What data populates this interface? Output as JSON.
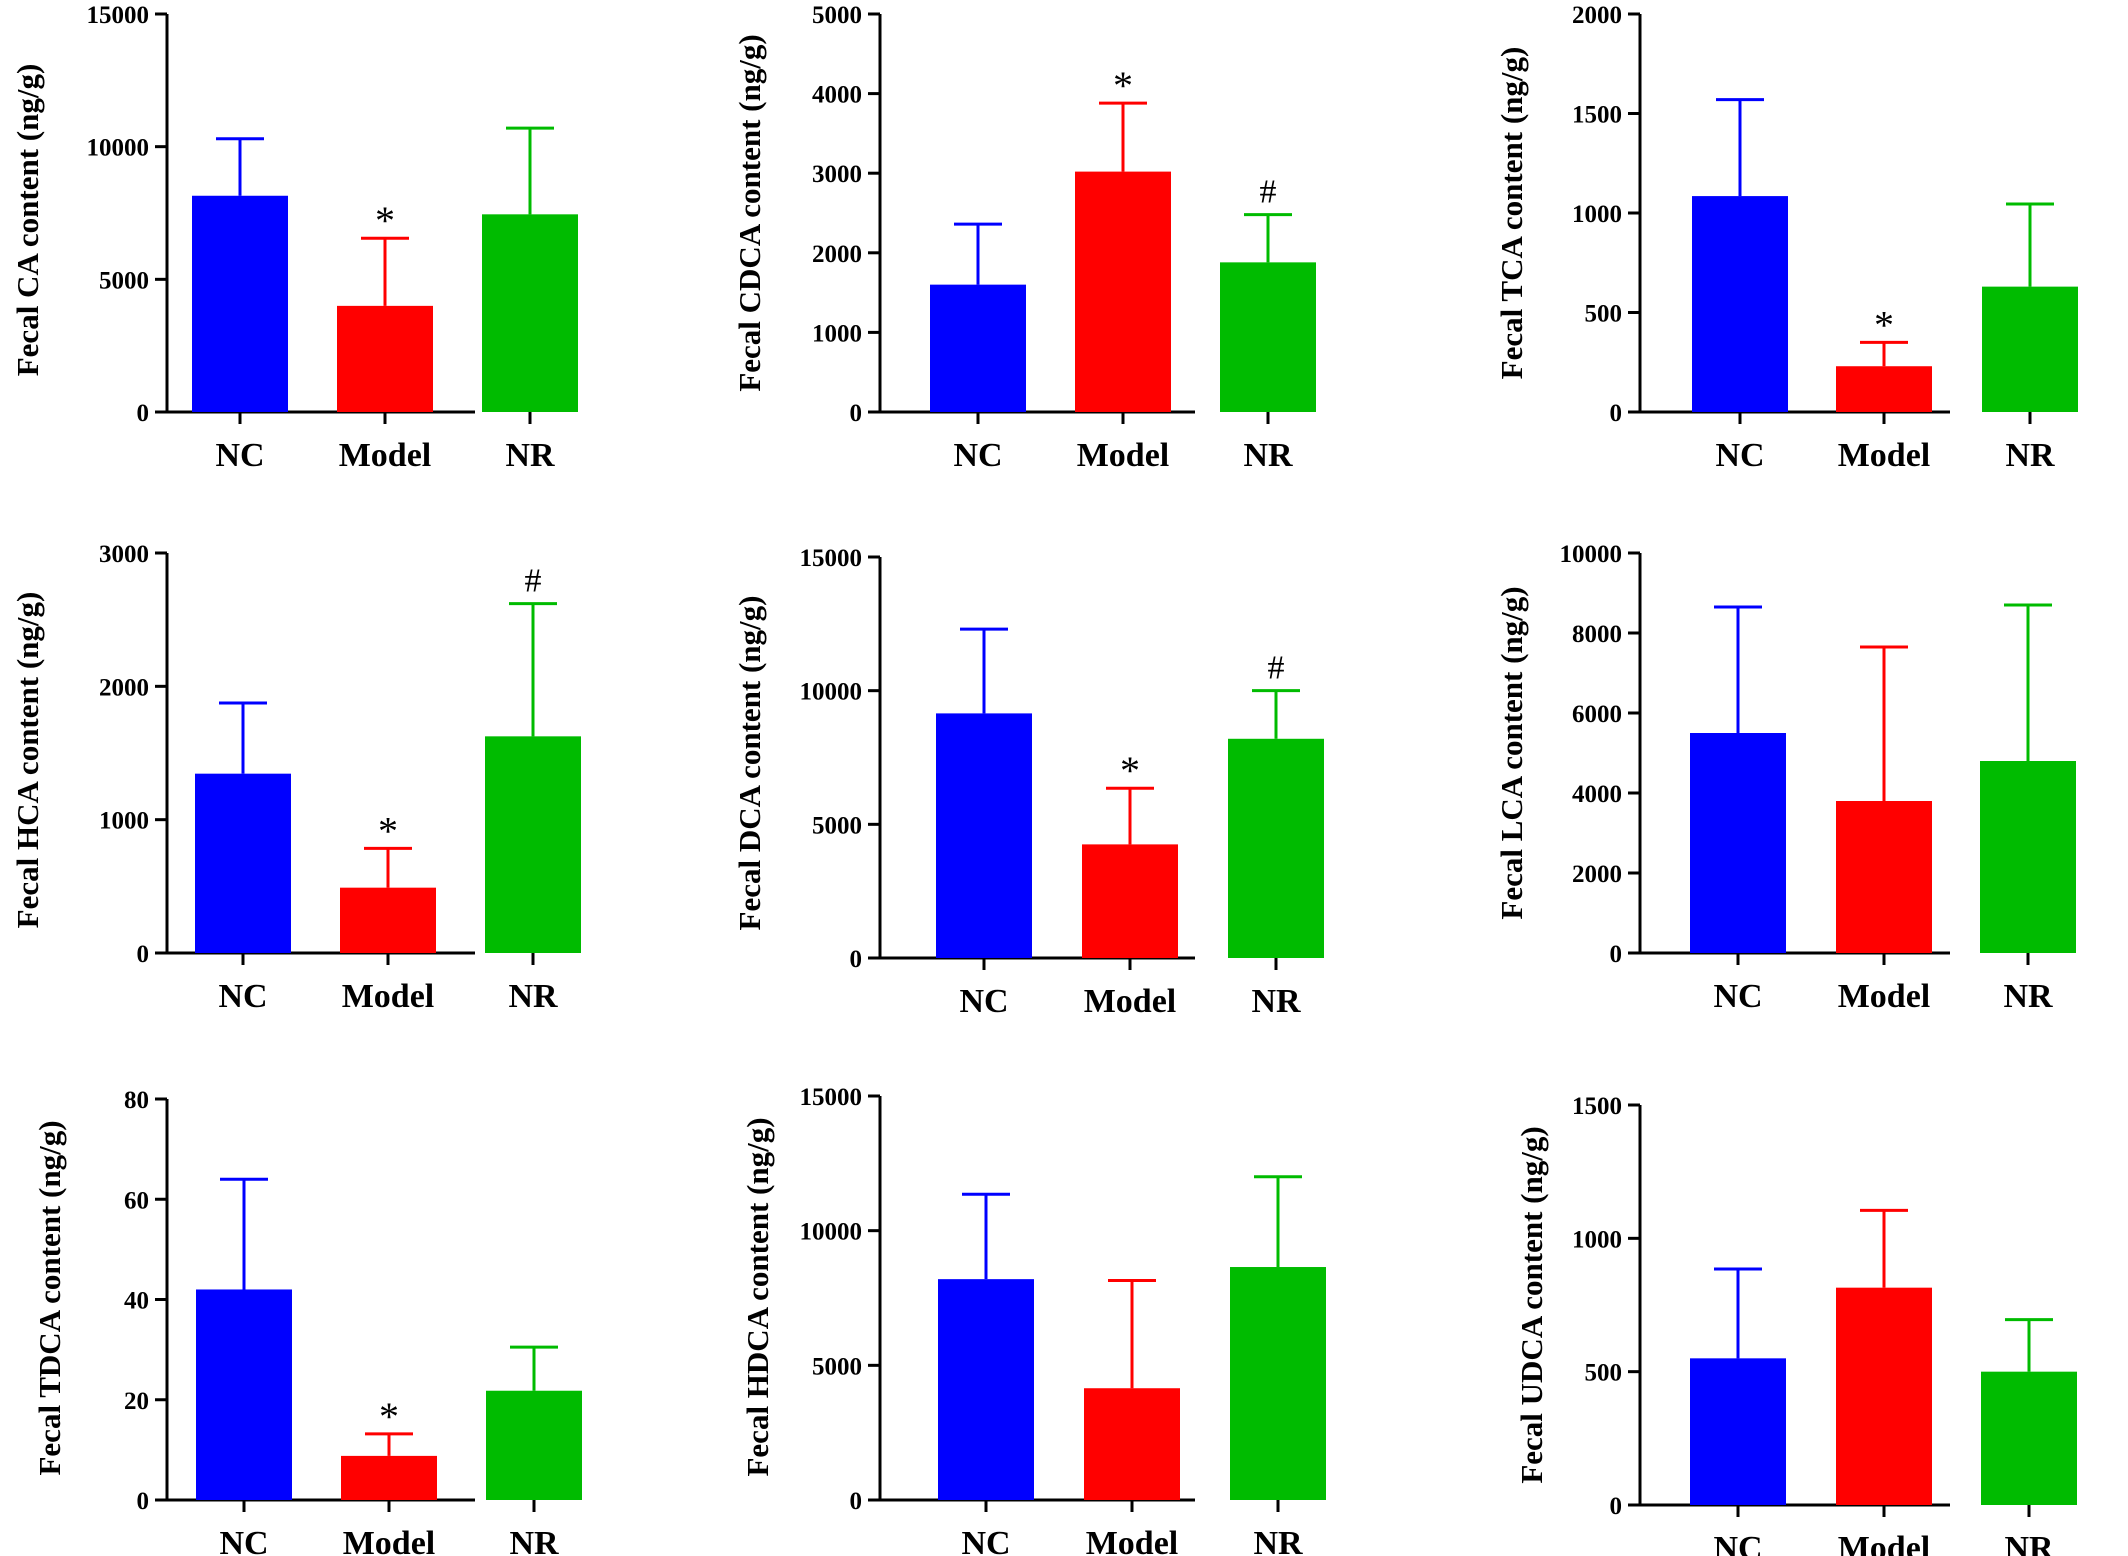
{
  "colors": {
    "NC": "#0000ff",
    "Model": "#ff0000",
    "NR": "#00bb00",
    "axis": "#000000"
  },
  "chart_data": [
    {
      "type": "bar",
      "ylabel": "Fecal CA content (ng/g)",
      "categories": [
        "NC",
        "Model",
        "NR"
      ],
      "values": [
        8150,
        4000,
        7450
      ],
      "errors": [
        2150,
        2550,
        3250
      ],
      "ylim": [
        0,
        15000
      ],
      "yticks": [
        0,
        5000,
        10000,
        15000
      ],
      "tick_labels": [
        "0",
        "5000",
        "10000",
        "15000"
      ],
      "significance": [
        "",
        "*",
        ""
      ]
    },
    {
      "type": "bar",
      "ylabel": "Fecal CDCA content (ng/g)",
      "categories": [
        "NC",
        "Model",
        "NR"
      ],
      "values": [
        1600,
        3020,
        1880
      ],
      "errors": [
        760,
        860,
        600
      ],
      "ylim": [
        0,
        5000
      ],
      "yticks": [
        0,
        1000,
        2000,
        3000,
        4000,
        5000
      ],
      "tick_labels": [
        "0",
        "1000",
        "2000",
        "3000",
        "4000",
        "5000"
      ],
      "significance": [
        "",
        "*",
        "#"
      ]
    },
    {
      "type": "bar",
      "ylabel": "Fecal TCA content (ng/g)",
      "categories": [
        "NC",
        "Model",
        "NR"
      ],
      "values": [
        1085,
        230,
        630
      ],
      "errors": [
        485,
        120,
        415
      ],
      "ylim": [
        0,
        2000
      ],
      "yticks": [
        0,
        500,
        1000,
        1500,
        2000
      ],
      "tick_labels": [
        "0",
        "500",
        "1000",
        "1500",
        "2000"
      ],
      "significance": [
        "",
        "*",
        ""
      ]
    },
    {
      "type": "bar",
      "ylabel": "Fecal HCA content (ng/g)",
      "categories": [
        "NC",
        "Model",
        "NR"
      ],
      "values": [
        1345,
        490,
        1625
      ],
      "errors": [
        530,
        295,
        995
      ],
      "ylim": [
        0,
        3000
      ],
      "yticks": [
        0,
        1000,
        2000,
        3000
      ],
      "tick_labels": [
        "0",
        "1000",
        "2000",
        "3000"
      ],
      "significance": [
        "",
        "*",
        "#"
      ]
    },
    {
      "type": "bar",
      "ylabel": "Fecal DCA content (ng/g)",
      "categories": [
        "NC",
        "Model",
        "NR"
      ],
      "values": [
        9150,
        4250,
        8200
      ],
      "errors": [
        3150,
        2100,
        1800
      ],
      "ylim": [
        0,
        15000
      ],
      "yticks": [
        0,
        5000,
        10000,
        15000
      ],
      "tick_labels": [
        "0",
        "5000",
        "10000",
        "15000"
      ],
      "significance": [
        "",
        "*",
        "#"
      ]
    },
    {
      "type": "bar",
      "ylabel": "Fecal LCA content (ng/g)",
      "categories": [
        "NC",
        "Model",
        "NR"
      ],
      "values": [
        5500,
        3800,
        4800
      ],
      "errors": [
        3150,
        3850,
        3900
      ],
      "ylim": [
        0,
        10000
      ],
      "yticks": [
        0,
        2000,
        4000,
        6000,
        8000,
        10000
      ],
      "tick_labels": [
        "0",
        "2000",
        "4000",
        "6000",
        "8000",
        "10000"
      ],
      "significance": [
        "",
        "",
        ""
      ]
    },
    {
      "type": "bar",
      "ylabel": "Fecal TDCA content (ng/g)",
      "categories": [
        "NC",
        "Model",
        "NR"
      ],
      "values": [
        42,
        8.8,
        21.8
      ],
      "errors": [
        22,
        4.4,
        8.7
      ],
      "ylim": [
        0,
        80
      ],
      "yticks": [
        0,
        20,
        40,
        60,
        80
      ],
      "tick_labels": [
        "0",
        "20",
        "40",
        "60",
        "80"
      ],
      "significance": [
        "",
        "*",
        ""
      ]
    },
    {
      "type": "bar",
      "ylabel": "Fecal HDCA content (ng/g)",
      "categories": [
        "NC",
        "Model",
        "NR"
      ],
      "values": [
        8200,
        4150,
        8650
      ],
      "errors": [
        3150,
        4000,
        3350
      ],
      "ylim": [
        0,
        15000
      ],
      "yticks": [
        0,
        5000,
        10000,
        15000
      ],
      "tick_labels": [
        "0",
        "5000",
        "10000",
        "15000"
      ],
      "significance": [
        "",
        "",
        ""
      ]
    },
    {
      "type": "bar",
      "ylabel": "Fecal UDCA content (ng/g)",
      "categories": [
        "NC",
        "Model",
        "NR"
      ],
      "values": [
        550,
        815,
        500
      ],
      "errors": [
        335,
        290,
        195
      ],
      "ylim": [
        0,
        1500
      ],
      "yticks": [
        0,
        500,
        1000,
        1500
      ],
      "tick_labels": [
        "0",
        "500",
        "1000",
        "1500"
      ],
      "significance": [
        "",
        "",
        ""
      ]
    }
  ]
}
